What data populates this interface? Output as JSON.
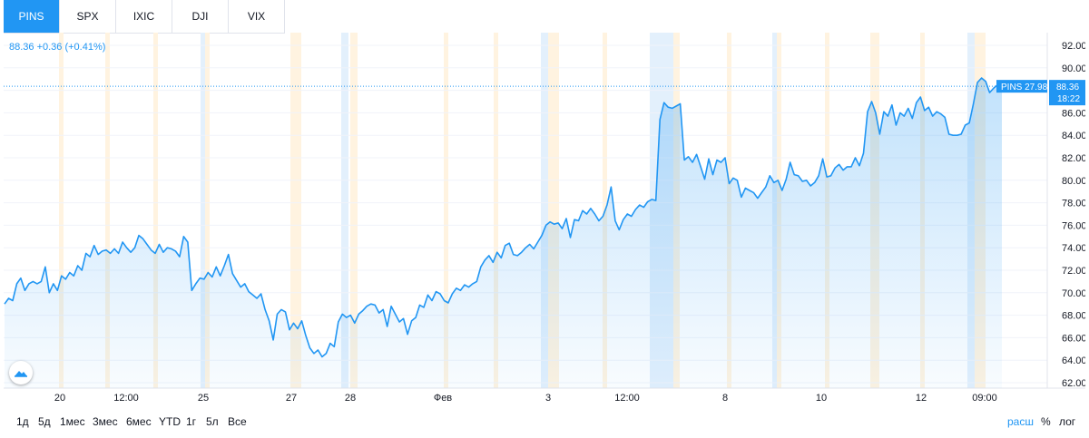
{
  "tabs": [
    {
      "label": "PINS",
      "active": true
    },
    {
      "label": "SPX",
      "active": false
    },
    {
      "label": "IXIC",
      "active": false
    },
    {
      "label": "DJI",
      "active": false
    },
    {
      "label": "VIX",
      "active": false
    }
  ],
  "price_info": "88.36 +0.36 (+0.41%)",
  "price_tag": {
    "label": "PINS 27.98%",
    "value": "88.36",
    "countdown": "18:22"
  },
  "y_ticks": [
    "92.00",
    "90.00",
    "88.00",
    "86.00",
    "84.00",
    "82.00",
    "80.00",
    "78.00",
    "76.00",
    "74.00",
    "72.00",
    "70.00",
    "68.00",
    "66.00",
    "64.00",
    "62.00"
  ],
  "x_ticks": [
    "20",
    "12:00",
    "25",
    "27",
    "28",
    "Фев",
    "3",
    "12:00",
    "8",
    "10",
    "12",
    "09:00"
  ],
  "ranges": [
    "1д",
    "5д",
    "1мес",
    "3мес",
    "6мес",
    "YTD",
    "1г",
    "5л",
    "Все"
  ],
  "controls": {
    "log_scale_label": "расш",
    "percent_label": "%",
    "log_label": "лог"
  },
  "colors": {
    "accent": "#2196f3",
    "premarket_band": "#fff3e0",
    "afterhours_band": "#e3f0fc",
    "tab_active_bg": "#2196f3"
  },
  "chart_data": {
    "type": "area",
    "symbol": "PINS",
    "ylim": [
      62,
      93
    ],
    "grid": true,
    "y": [
      69,
      69.5,
      69.3,
      70.8,
      71.3,
      70.2,
      70.8,
      71,
      70.8,
      71,
      72.3,
      70,
      70.8,
      70.2,
      71.5,
      71.2,
      71.8,
      71.5,
      72.4,
      72,
      73.5,
      73.2,
      74.2,
      73.4,
      73.7,
      73.8,
      73.5,
      73.9,
      73.5,
      74.5,
      74,
      73.6,
      74,
      75.1,
      74.8,
      74.3,
      73.8,
      73.5,
      74.3,
      73.6,
      74,
      73.9,
      73.7,
      73.2,
      75,
      74.5,
      70.2,
      70.8,
      71.3,
      71.2,
      71.8,
      71.4,
      72.3,
      71.5,
      72.4,
      73.4,
      71.7,
      71.1,
      70.5,
      70.8,
      70.1,
      69.8,
      69.5,
      69.9,
      68.5,
      67.5,
      65.8,
      68.1,
      68.5,
      68.3,
      66.7,
      67.3,
      66.8,
      67.5,
      66.2,
      65.1,
      64.6,
      64.9,
      64.3,
      64.6,
      65.5,
      65.2,
      67.4,
      68.1,
      67.8,
      68,
      67.3,
      68.1,
      68.4,
      68.8,
      69,
      68.9,
      68.2,
      68.5,
      67,
      68.8,
      68.1,
      67.4,
      67.7,
      66.3,
      67.5,
      67.8,
      68.9,
      68.7,
      69.8,
      69.3,
      70.1,
      69.9,
      69.3,
      69.1,
      69.9,
      70.4,
      70.2,
      70.7,
      70.5,
      70.8,
      71,
      72.3,
      72.9,
      73.3,
      72.7,
      73.6,
      73.1,
      74.2,
      74.4,
      73.4,
      73.3,
      73.6,
      74,
      74.3,
      73.9,
      74.5,
      75.1,
      76,
      76.3,
      76.1,
      76.2,
      75.7,
      76.6,
      74.9,
      76.5,
      76.4,
      77.3,
      77,
      77.5,
      77,
      76.4,
      76.8,
      77.8,
      79.4,
      76.4,
      75.6,
      76.5,
      77,
      76.8,
      77.4,
      77.8,
      77.6,
      78.1,
      78.3,
      78.2,
      85.4,
      86.9,
      86.5,
      86.4,
      86.6,
      86.8,
      81.8,
      82.1,
      81.6,
      82.3,
      81.2,
      80.1,
      81.9,
      80.5,
      81.8,
      81.6,
      82,
      79.7,
      80.2,
      80,
      78.5,
      79.3,
      79.1,
      78.9,
      78.4,
      78.9,
      79.4,
      80.4,
      79.8,
      80,
      79.1,
      80.1,
      81.6,
      80.5,
      80.4,
      79.9,
      80,
      79.5,
      79.8,
      80.4,
      81.9,
      80.3,
      80.4,
      81.1,
      81.4,
      80.9,
      81.2,
      81.2,
      82,
      81.3,
      82.4,
      86.1,
      87,
      86,
      84.1,
      86.1,
      85.7,
      86.7,
      84.9,
      86,
      85.7,
      86.4,
      85.5,
      86.9,
      87.4,
      86.2,
      86.5,
      85.7,
      86.1,
      85.9,
      85.6,
      84.1,
      84,
      84,
      84.1,
      84.9,
      85.1,
      86.8,
      88.7,
      89.1,
      88.8,
      87.8,
      88.2,
      88.5,
      88.36
    ]
  }
}
